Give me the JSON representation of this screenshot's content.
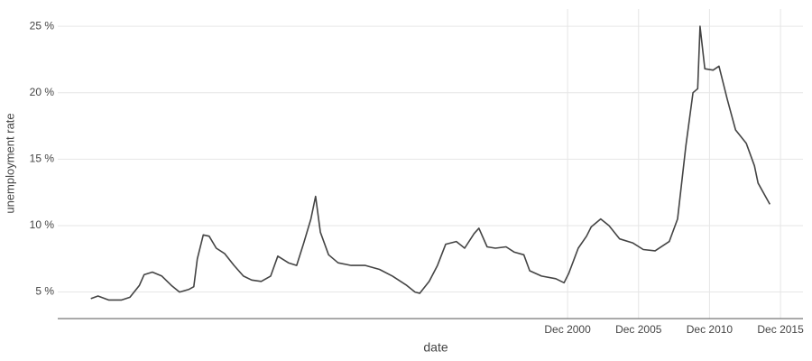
{
  "chart_data": {
    "type": "line",
    "x_label": "date",
    "y_label": "unemployment rate",
    "x": [
      "1967-05",
      "1967-11",
      "1968-08",
      "1969-07",
      "1970-02",
      "1970-10",
      "1971-02",
      "1971-09",
      "1972-05",
      "1973-01",
      "1973-08",
      "1974-04",
      "1974-08",
      "1974-11",
      "1975-04",
      "1975-09",
      "1976-03",
      "1976-10",
      "1977-06",
      "1978-02",
      "1978-09",
      "1979-05",
      "1980-01",
      "1980-07",
      "1981-04",
      "1981-11",
      "1982-05",
      "1982-11",
      "1983-03",
      "1983-07",
      "1984-02",
      "1984-10",
      "1985-09",
      "1986-09",
      "1987-09",
      "1988-08",
      "1989-08",
      "1990-03",
      "1990-07",
      "1991-03",
      "1991-10",
      "1992-05",
      "1993-02",
      "1993-09",
      "1994-05",
      "1994-09",
      "1995-04",
      "1995-11",
      "1996-08",
      "1997-03",
      "1997-11",
      "1998-04",
      "1999-02",
      "2000-02",
      "2000-09",
      "2001-01",
      "2001-09",
      "2002-04",
      "2002-08",
      "2003-04",
      "2003-11",
      "2004-08",
      "2005-07",
      "2006-04",
      "2007-02",
      "2008-02",
      "2008-09",
      "2009-04",
      "2009-10",
      "2010-02",
      "2010-04",
      "2010-08",
      "2011-03",
      "2011-08",
      "2012-03",
      "2012-10",
      "2013-07",
      "2014-02",
      "2014-05",
      "2015-03"
    ],
    "series": [
      {
        "name": "unemployment rate",
        "color": "#444444",
        "values": [
          4.5,
          4.7,
          4.4,
          4.4,
          4.6,
          5.5,
          6.3,
          6.5,
          6.2,
          5.5,
          5.0,
          5.2,
          5.4,
          7.5,
          9.3,
          9.2,
          8.3,
          7.9,
          7.0,
          6.2,
          5.9,
          5.8,
          6.2,
          7.7,
          7.2,
          7.0,
          8.7,
          10.5,
          12.2,
          9.5,
          7.8,
          7.2,
          7.0,
          7.0,
          6.7,
          6.2,
          5.5,
          5.0,
          4.9,
          5.8,
          7.0,
          8.6,
          8.8,
          8.3,
          9.4,
          9.8,
          8.4,
          8.3,
          8.4,
          8.0,
          7.8,
          6.6,
          6.2,
          6.0,
          5.7,
          6.4,
          8.3,
          9.2,
          9.9,
          10.5,
          10.0,
          9.0,
          8.7,
          8.2,
          8.1,
          8.8,
          10.5,
          16.0,
          20.0,
          20.3,
          25.0,
          21.8,
          21.7,
          22.0,
          19.5,
          17.2,
          16.2,
          14.5,
          13.2,
          11.6
        ]
      }
    ],
    "xlim": [
      "1965-01",
      "2017-07"
    ],
    "xticks": [
      {
        "value": "2000-12",
        "label": "Dec 2000"
      },
      {
        "value": "2005-12",
        "label": "Dec 2005"
      },
      {
        "value": "2010-12",
        "label": "Dec 2010"
      },
      {
        "value": "2015-12",
        "label": "Dec 2015"
      }
    ],
    "ylim": [
      3,
      26.3
    ],
    "yticks": [
      {
        "value": 5,
        "label": "5 %"
      },
      {
        "value": 10,
        "label": "10 %"
      },
      {
        "value": 15,
        "label": "15 %"
      },
      {
        "value": 20,
        "label": "20 %"
      },
      {
        "value": 25,
        "label": "25 %"
      }
    ],
    "grid": true
  }
}
